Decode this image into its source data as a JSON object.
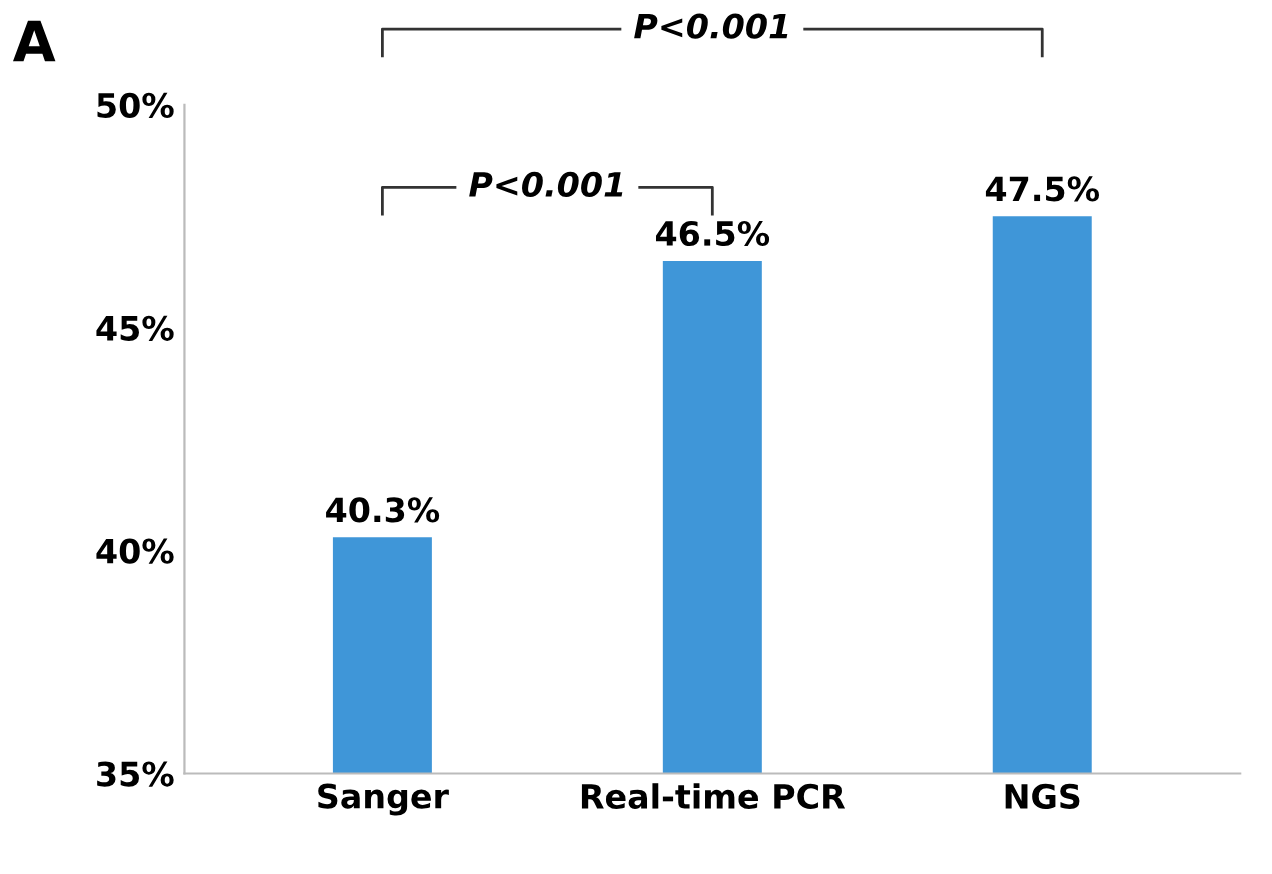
{
  "chart_data": {
    "type": "bar",
    "categories": [
      "Sanger",
      "Real-time PCR",
      "NGS"
    ],
    "values": [
      40.3,
      46.5,
      47.5
    ],
    "color": "#3f96d8",
    "value_labels": [
      "40.3%",
      "46.5%",
      "47.5%"
    ],
    "ylim": [
      35,
      50
    ],
    "yticks": [
      {
        "value": 35,
        "label": "35%"
      },
      {
        "value": 40,
        "label": "40%"
      },
      {
        "value": 45,
        "label": "45%"
      },
      {
        "value": 50,
        "label": "50%"
      }
    ],
    "grid": false,
    "legend": false,
    "annotations": [
      "A",
      "P<0.001",
      "P<0.001"
    ]
  }
}
